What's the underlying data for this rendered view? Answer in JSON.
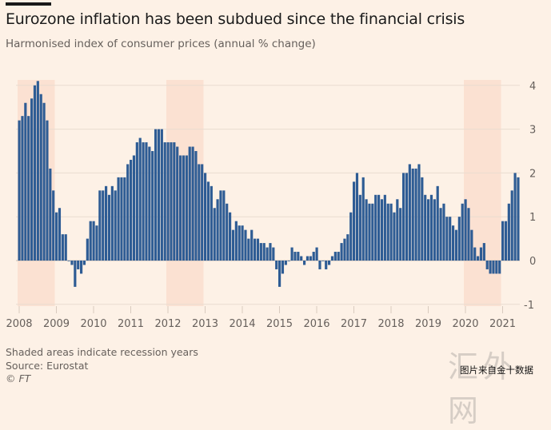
{
  "header": {
    "title": "Eurozone inflation has been subdued since the financial crisis",
    "subtitle": "Harmonised index of consumer prices (annual % change)"
  },
  "footer": {
    "note": "Shaded areas indicate recession years",
    "source": "Source: Eurostat",
    "copyright": "© FT"
  },
  "watermark": {
    "logo_text": "汇外网",
    "caption": "图片来自金十数据"
  },
  "colors": {
    "background": "#fdf1e6",
    "bar": "#2e5c94",
    "recession_shade": "#fbe1d2",
    "grid": "#eadcd0"
  },
  "chart_data": {
    "type": "bar",
    "title": "Eurozone inflation has been subdued since the financial crisis",
    "subtitle": "Harmonised index of consumer prices (annual % change)",
    "xlabel": "",
    "ylabel": "",
    "frequency": "monthly",
    "start": "2008-01",
    "x_tick_labels": [
      "2008",
      "2009",
      "2010",
      "2011",
      "2012",
      "2013",
      "2014",
      "2015",
      "2016",
      "2017",
      "2018",
      "2019",
      "2020",
      "2021"
    ],
    "y_ticks": [
      -1,
      0,
      1,
      2,
      3,
      4
    ],
    "y_tick_labels": [
      "-1",
      "0",
      "1",
      "2",
      "3",
      "4"
    ],
    "ylim": [
      -1,
      4
    ],
    "y_axis_position": "right",
    "grid": true,
    "recession_periods": [
      {
        "start": "2008-01",
        "end": "2008-12"
      },
      {
        "start": "2012-01",
        "end": "2012-12"
      },
      {
        "start": "2020-01",
        "end": "2020-12"
      }
    ],
    "values": [
      3.2,
      3.3,
      3.6,
      3.3,
      3.7,
      4.0,
      4.1,
      3.8,
      3.6,
      3.2,
      2.1,
      1.6,
      1.1,
      1.2,
      0.6,
      0.6,
      0.0,
      -0.1,
      -0.6,
      -0.2,
      -0.3,
      -0.1,
      0.5,
      0.9,
      0.9,
      0.8,
      1.6,
      1.6,
      1.7,
      1.5,
      1.7,
      1.6,
      1.9,
      1.9,
      1.9,
      2.2,
      2.3,
      2.4,
      2.7,
      2.8,
      2.7,
      2.7,
      2.6,
      2.5,
      3.0,
      3.0,
      3.0,
      2.7,
      2.7,
      2.7,
      2.7,
      2.6,
      2.4,
      2.4,
      2.4,
      2.6,
      2.6,
      2.5,
      2.2,
      2.2,
      2.0,
      1.8,
      1.7,
      1.2,
      1.4,
      1.6,
      1.6,
      1.3,
      1.1,
      0.7,
      0.9,
      0.8,
      0.8,
      0.7,
      0.5,
      0.7,
      0.5,
      0.5,
      0.4,
      0.4,
      0.3,
      0.4,
      0.3,
      -0.2,
      -0.6,
      -0.3,
      -0.1,
      0.0,
      0.3,
      0.2,
      0.2,
      0.1,
      -0.1,
      0.1,
      0.1,
      0.2,
      0.3,
      -0.2,
      0.0,
      -0.2,
      -0.1,
      0.1,
      0.2,
      0.2,
      0.4,
      0.5,
      0.6,
      1.1,
      1.8,
      2.0,
      1.5,
      1.9,
      1.4,
      1.3,
      1.3,
      1.5,
      1.5,
      1.4,
      1.5,
      1.3,
      1.3,
      1.1,
      1.4,
      1.2,
      2.0,
      2.0,
      2.2,
      2.1,
      2.1,
      2.2,
      1.9,
      1.5,
      1.4,
      1.5,
      1.4,
      1.7,
      1.2,
      1.3,
      1.0,
      1.0,
      0.8,
      0.7,
      1.0,
      1.3,
      1.4,
      1.2,
      0.7,
      0.3,
      0.1,
      0.3,
      0.4,
      -0.2,
      -0.3,
      -0.3,
      -0.3,
      -0.3,
      0.9,
      0.9,
      1.3,
      1.6,
      2.0,
      1.9
    ]
  }
}
